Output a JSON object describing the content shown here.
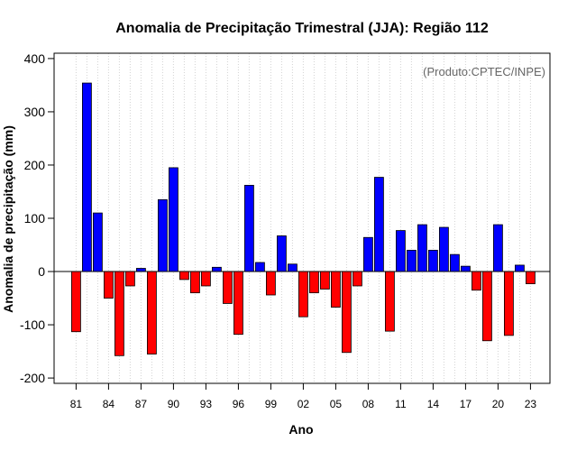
{
  "chart_data": {
    "type": "bar",
    "title": "Anomalia de Precipitação Trimestral (JJA): Região 112",
    "xlabel": "Ano",
    "ylabel": "Anomalia de precipitação (mm)",
    "credit": "(Produto:CPTEC/INPE)",
    "ylim": [
      -210,
      410
    ],
    "yticks": [
      -200,
      -100,
      0,
      100,
      200,
      300,
      400
    ],
    "years": [
      1981,
      1982,
      1983,
      1984,
      1985,
      1986,
      1987,
      1988,
      1989,
      1990,
      1991,
      1992,
      1993,
      1994,
      1995,
      1996,
      1997,
      1998,
      1999,
      2000,
      2001,
      2002,
      2003,
      2004,
      2005,
      2006,
      2007,
      2008,
      2009,
      2010,
      2011,
      2012,
      2013,
      2014,
      2015,
      2016,
      2017,
      2018,
      2019,
      2020,
      2021,
      2022,
      2023
    ],
    "values": [
      -113,
      354,
      110,
      -50,
      -158,
      -27,
      6,
      -155,
      135,
      195,
      -15,
      -40,
      -27,
      8,
      -60,
      -118,
      162,
      17,
      -44,
      67,
      14,
      -85,
      -40,
      -33,
      -67,
      -152,
      -27,
      64,
      177,
      -112,
      77,
      40,
      88,
      40,
      83,
      32,
      10,
      -35,
      -130,
      88,
      -120,
      12,
      -23
    ],
    "xtick_labels": [
      "81",
      "84",
      "87",
      "90",
      "93",
      "96",
      "99",
      "02",
      "05",
      "08",
      "11",
      "14",
      "17",
      "20",
      "23"
    ],
    "xtick_years": [
      1981,
      1984,
      1987,
      1990,
      1993,
      1996,
      1999,
      2002,
      2005,
      2008,
      2011,
      2014,
      2017,
      2020,
      2023
    ],
    "colors": {
      "positive": "#0000ff",
      "negative": "#ff0000",
      "grid": "#d3d3d3",
      "credit": "#666666"
    }
  }
}
